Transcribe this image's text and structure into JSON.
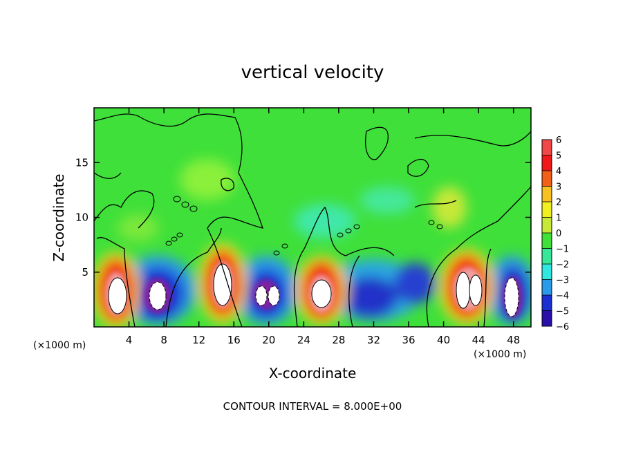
{
  "chart_data": {
    "type": "heatmap",
    "title": "vertical velocity",
    "xlabel": "X-coordinate",
    "ylabel": "Z-coordinate",
    "x_unit_left": "(×1000 m)",
    "x_unit_right": "(×1000 m)",
    "footer": "CONTOUR INTERVAL = 8.000E+00",
    "xlim": [
      0,
      50
    ],
    "ylim": [
      0,
      20
    ],
    "x_ticks": [
      4,
      8,
      12,
      16,
      20,
      24,
      28,
      32,
      36,
      40,
      44,
      48
    ],
    "y_ticks": [
      5,
      10,
      15
    ],
    "colorbar": {
      "ticks": [
        6,
        5,
        4,
        3,
        2,
        1,
        0,
        -1,
        -2,
        -3,
        -4,
        -5,
        -6
      ],
      "range": [
        -6,
        6
      ]
    },
    "updraft_cores_x": [
      2.5,
      14.5,
      26,
      42.5
    ],
    "downdraft_cores_x": [
      7.5,
      19.5,
      31,
      47.5
    ],
    "contour_interval": 8.0
  }
}
